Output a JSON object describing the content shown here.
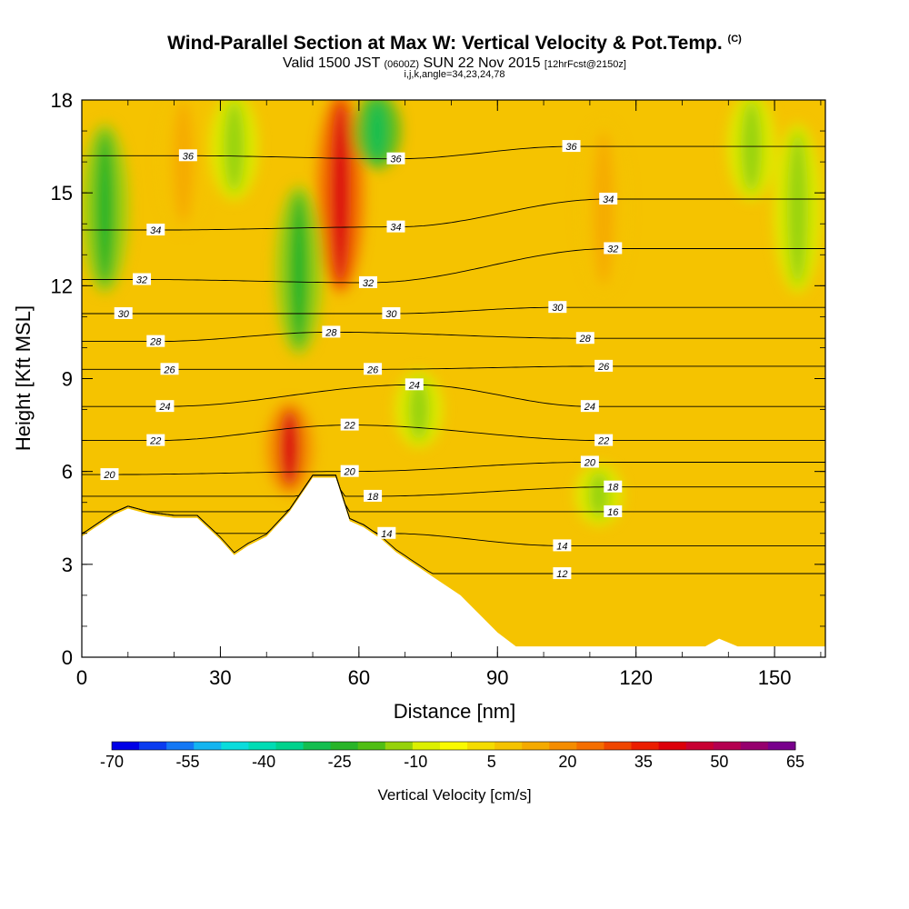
{
  "header": {
    "title": "Wind-Parallel Section at Max W: Vertical Velocity & Pot.Temp.",
    "title_unit": "(C)",
    "valid_prefix": "Valid 1500 JST",
    "valid_utc": "(0600Z)",
    "valid_date": "SUN 22 Nov 2015",
    "forecast_info": "[12hrFcst@2150z]",
    "index_info": "i,j,k,angle=34,23,24,78"
  },
  "chart_data": {
    "type": "heatmap",
    "xlabel": "Distance [nm]",
    "ylabel": "Height [Kft MSL]",
    "xlim": [
      0,
      161
    ],
    "ylim": [
      0,
      18
    ],
    "x_ticks": [
      "0",
      "30",
      "60",
      "90",
      "120",
      "150"
    ],
    "y_ticks": [
      "0",
      "3",
      "6",
      "9",
      "12",
      "15",
      "18"
    ],
    "colorbar": {
      "label": "Vertical Velocity [cm/s]",
      "tick_labels": [
        "-70",
        "-55",
        "-40",
        "-25",
        "-10",
        "5",
        "20",
        "35",
        "50",
        "65"
      ],
      "colors": [
        "#0000e6",
        "#0a3cf0",
        "#1478f5",
        "#14b4f0",
        "#0adcdc",
        "#00dcb4",
        "#00d28c",
        "#14be50",
        "#28b428",
        "#50be14",
        "#96d20a",
        "#dcf000",
        "#fafa00",
        "#f5dc00",
        "#f5c300",
        "#f5aa00",
        "#f58c00",
        "#f56e00",
        "#f04600",
        "#eb1e00",
        "#dc000a",
        "#c80032",
        "#b40050",
        "#96006e",
        "#78008c"
      ]
    },
    "terrain_profile_kft": {
      "x": [
        0,
        3,
        5,
        7,
        10,
        15,
        20,
        25,
        30,
        33,
        36,
        40,
        45,
        50,
        55,
        58,
        61,
        65,
        68,
        72,
        76,
        82,
        86,
        90,
        94,
        100,
        110,
        120,
        130,
        135,
        138,
        142,
        150,
        161
      ],
      "y": [
        3.9,
        4.2,
        4.4,
        4.6,
        4.8,
        4.6,
        4.5,
        4.5,
        3.8,
        3.3,
        3.6,
        3.9,
        4.7,
        5.8,
        5.8,
        4.4,
        4.2,
        3.8,
        3.4,
        3.0,
        2.6,
        2.0,
        1.4,
        0.8,
        0.35,
        0.35,
        0.35,
        0.35,
        0.35,
        0.35,
        0.6,
        0.35,
        0.35,
        0.35
      ]
    },
    "theta_contours_c": [
      {
        "label": "12",
        "level": 12,
        "label_at": [
          104,
          2.7
        ]
      },
      {
        "label": "14",
        "level": 14,
        "label_at": [
          104,
          3.6
        ]
      },
      {
        "label": "14",
        "level": 14,
        "label_at": [
          66,
          4.0
        ]
      },
      {
        "label": "16",
        "level": 16,
        "label_at": [
          115,
          4.7
        ]
      },
      {
        "label": "18",
        "level": 18,
        "label_at": [
          115,
          5.5
        ]
      },
      {
        "label": "18",
        "level": 18,
        "label_at": [
          63,
          5.2
        ]
      },
      {
        "label": "20",
        "level": 20,
        "label_at": [
          110,
          6.3
        ]
      },
      {
        "label": "20",
        "level": 20,
        "label_at": [
          6,
          5.9
        ]
      },
      {
        "label": "20",
        "level": 20,
        "label_at": [
          58,
          6.0
        ]
      },
      {
        "label": "22",
        "level": 22,
        "label_at": [
          113,
          7.0
        ]
      },
      {
        "label": "22",
        "level": 22,
        "label_at": [
          16,
          7.0
        ]
      },
      {
        "label": "22",
        "level": 22,
        "label_at": [
          58,
          7.5
        ]
      },
      {
        "label": "24",
        "level": 24,
        "label_at": [
          110,
          8.1
        ]
      },
      {
        "label": "24",
        "level": 24,
        "label_at": [
          18,
          8.1
        ]
      },
      {
        "label": "24",
        "level": 24,
        "label_at": [
          72,
          8.8
        ]
      },
      {
        "label": "26",
        "level": 26,
        "label_at": [
          113,
          9.4
        ]
      },
      {
        "label": "26",
        "level": 26,
        "label_at": [
          19,
          9.3
        ]
      },
      {
        "label": "26",
        "level": 26,
        "label_at": [
          63,
          9.3
        ]
      },
      {
        "label": "28",
        "level": 28,
        "label_at": [
          109,
          10.3
        ]
      },
      {
        "label": "28",
        "level": 28,
        "label_at": [
          16,
          10.2
        ]
      },
      {
        "label": "28",
        "level": 28,
        "label_at": [
          54,
          10.5
        ]
      },
      {
        "label": "30",
        "level": 30,
        "label_at": [
          103,
          11.3
        ]
      },
      {
        "label": "30",
        "level": 30,
        "label_at": [
          9,
          11.1
        ]
      },
      {
        "label": "30",
        "level": 30,
        "label_at": [
          67,
          11.1
        ]
      },
      {
        "label": "32",
        "level": 32,
        "label_at": [
          115,
          13.2
        ]
      },
      {
        "label": "32",
        "level": 32,
        "label_at": [
          13,
          12.2
        ]
      },
      {
        "label": "32",
        "level": 32,
        "label_at": [
          62,
          12.1
        ]
      },
      {
        "label": "34",
        "level": 34,
        "label_at": [
          114,
          14.8
        ]
      },
      {
        "label": "34",
        "level": 34,
        "label_at": [
          16,
          13.8
        ]
      },
      {
        "label": "34",
        "level": 34,
        "label_at": [
          68,
          13.9
        ]
      },
      {
        "label": "36",
        "level": 36,
        "label_at": [
          106,
          16.5
        ]
      },
      {
        "label": "36",
        "level": 36,
        "label_at": [
          23,
          16.2
        ]
      },
      {
        "label": "36",
        "level": 36,
        "label_at": [
          68,
          16.1
        ]
      }
    ],
    "velocity_features_cms": [
      {
        "kind": "updraft",
        "x": 56,
        "y": [
          12,
          18
        ],
        "peak": 40
      },
      {
        "kind": "updraft",
        "x": 45,
        "y": [
          5.5,
          8
        ],
        "peak": 38
      },
      {
        "kind": "updraft",
        "x": 22,
        "y": [
          14,
          18
        ],
        "peak": 15
      },
      {
        "kind": "updraft",
        "x": 113,
        "y": [
          12,
          17
        ],
        "peak": 15
      },
      {
        "kind": "downdraft",
        "x": 47,
        "y": [
          10,
          15
        ],
        "peak": -25
      },
      {
        "kind": "downdraft",
        "x": 64,
        "y": [
          16,
          18
        ],
        "peak": -30
      },
      {
        "kind": "downdraft",
        "x": 5,
        "y": [
          12,
          17
        ],
        "peak": -25
      },
      {
        "kind": "downdraft",
        "x": 33,
        "y": [
          15,
          18
        ],
        "peak": -15
      },
      {
        "kind": "downdraft",
        "x": 73,
        "y": [
          7,
          9
        ],
        "peak": -12
      },
      {
        "kind": "downdraft",
        "x": 145,
        "y": [
          15,
          18
        ],
        "peak": -12
      },
      {
        "kind": "downdraft",
        "x": 155,
        "y": [
          12,
          17
        ],
        "peak": -12
      },
      {
        "kind": "downdraft",
        "x": 112,
        "y": [
          4.5,
          6
        ],
        "peak": -12
      }
    ]
  }
}
